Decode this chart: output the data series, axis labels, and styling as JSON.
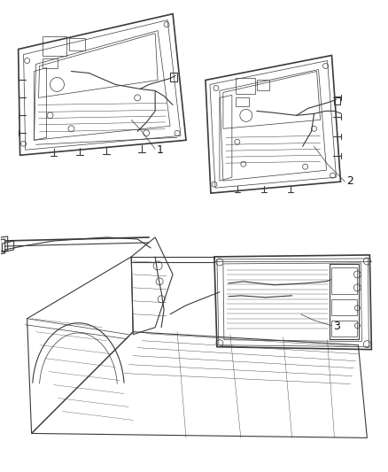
{
  "bg_color": "#ffffff",
  "fig_width": 4.38,
  "fig_height": 5.33,
  "dpi": 100,
  "line_color": "#3a3a3a",
  "label_color": "#111111",
  "lw_thin": 0.5,
  "lw_med": 0.8,
  "lw_thick": 1.2,
  "items": [
    {
      "id": 1,
      "label": "1"
    },
    {
      "id": 2,
      "label": "2"
    },
    {
      "id": 3,
      "label": "3"
    }
  ]
}
